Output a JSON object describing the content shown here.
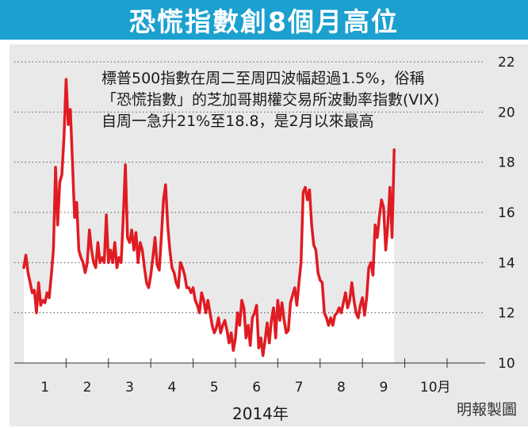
{
  "title": "恐慌指數創8個月高位",
  "annotation": "標普500指數在周二至周四波幅超過1.5%，俗稱「恐慌指數」的芝加哥期權交易所波動率指數(VIX)自周一急升21%至18.8，是2月以來最高",
  "credit": "明報製圖",
  "colors": {
    "title_bg": "#1ba0cf",
    "line": "#e01b22",
    "panel_bg": "#e9e9ea",
    "area_fill": "#ffffff"
  },
  "chart_data": {
    "type": "area",
    "xlabel": "2014年",
    "ylabel": "",
    "ylim": [
      10,
      22
    ],
    "xlim": [
      0,
      10.75
    ],
    "y_ticks": [
      "10",
      "12",
      "14",
      "16",
      "18",
      "20",
      "22"
    ],
    "x_ticks": [
      {
        "label": "1",
        "x": 0.5
      },
      {
        "label": "2",
        "x": 1.5
      },
      {
        "label": "3",
        "x": 2.5
      },
      {
        "label": "4",
        "x": 3.5
      },
      {
        "label": "5",
        "x": 4.5
      },
      {
        "label": "6",
        "x": 5.5
      },
      {
        "label": "7",
        "x": 6.5
      },
      {
        "label": "8",
        "x": 7.5
      },
      {
        "label": "9",
        "x": 8.5
      },
      {
        "label": "10月",
        "x": 9.5
      }
    ],
    "grid": true,
    "series": [
      {
        "values": [
          [
            0.0,
            13.8
          ],
          [
            0.05,
            14.3
          ],
          [
            0.1,
            13.6
          ],
          [
            0.15,
            13.2
          ],
          [
            0.2,
            12.8
          ],
          [
            0.25,
            12.9
          ],
          [
            0.3,
            12.0
          ],
          [
            0.35,
            13.2
          ],
          [
            0.4,
            12.3
          ],
          [
            0.45,
            12.5
          ],
          [
            0.5,
            12.4
          ],
          [
            0.55,
            12.8
          ],
          [
            0.6,
            12.6
          ],
          [
            0.65,
            13.5
          ],
          [
            0.7,
            14.5
          ],
          [
            0.75,
            17.8
          ],
          [
            0.8,
            15.5
          ],
          [
            0.85,
            17.2
          ],
          [
            0.9,
            17.5
          ],
          [
            0.95,
            19.0
          ],
          [
            1.0,
            21.3
          ],
          [
            1.05,
            19.5
          ],
          [
            1.1,
            20.1
          ],
          [
            1.15,
            18.0
          ],
          [
            1.2,
            15.8
          ],
          [
            1.25,
            16.4
          ],
          [
            1.3,
            14.5
          ],
          [
            1.35,
            14.2
          ],
          [
            1.4,
            14.0
          ],
          [
            1.45,
            13.6
          ],
          [
            1.5,
            14.0
          ],
          [
            1.55,
            15.3
          ],
          [
            1.6,
            14.5
          ],
          [
            1.65,
            14.0
          ],
          [
            1.7,
            13.8
          ],
          [
            1.75,
            14.8
          ],
          [
            1.8,
            14.0
          ],
          [
            1.85,
            14.2
          ],
          [
            1.9,
            14.0
          ],
          [
            1.95,
            15.9
          ],
          [
            2.0,
            14.0
          ],
          [
            2.05,
            14.5
          ],
          [
            2.1,
            14.0
          ],
          [
            2.15,
            14.8
          ],
          [
            2.2,
            13.8
          ],
          [
            2.25,
            14.2
          ],
          [
            2.3,
            14.0
          ],
          [
            2.35,
            15.8
          ],
          [
            2.4,
            17.9
          ],
          [
            2.45,
            15.0
          ],
          [
            2.5,
            14.8
          ],
          [
            2.55,
            15.3
          ],
          [
            2.6,
            14.5
          ],
          [
            2.65,
            15.2
          ],
          [
            2.7,
            14.0
          ],
          [
            2.75,
            14.8
          ],
          [
            2.8,
            14.5
          ],
          [
            2.85,
            13.8
          ],
          [
            2.9,
            13.2
          ],
          [
            2.95,
            13.0
          ],
          [
            3.0,
            13.5
          ],
          [
            3.05,
            14.2
          ],
          [
            3.1,
            15.0
          ],
          [
            3.15,
            13.9
          ],
          [
            3.2,
            13.7
          ],
          [
            3.25,
            15.0
          ],
          [
            3.3,
            16.5
          ],
          [
            3.35,
            17.1
          ],
          [
            3.4,
            15.5
          ],
          [
            3.45,
            14.5
          ],
          [
            3.5,
            13.8
          ],
          [
            3.55,
            13.6
          ],
          [
            3.6,
            13.2
          ],
          [
            3.65,
            13.0
          ],
          [
            3.7,
            14.0
          ],
          [
            3.75,
            13.8
          ],
          [
            3.8,
            13.5
          ],
          [
            3.85,
            13.0
          ],
          [
            3.9,
            13.0
          ],
          [
            3.95,
            12.8
          ],
          [
            4.0,
            13.0
          ],
          [
            4.05,
            12.5
          ],
          [
            4.1,
            12.3
          ],
          [
            4.15,
            12.0
          ],
          [
            4.2,
            12.8
          ],
          [
            4.25,
            12.5
          ],
          [
            4.3,
            12.0
          ],
          [
            4.35,
            12.5
          ],
          [
            4.4,
            12.0
          ],
          [
            4.45,
            11.5
          ],
          [
            4.5,
            11.2
          ],
          [
            4.55,
            11.4
          ],
          [
            4.6,
            11.8
          ],
          [
            4.65,
            11.2
          ],
          [
            4.7,
            11.5
          ],
          [
            4.75,
            11.7
          ],
          [
            4.8,
            11.3
          ],
          [
            4.85,
            10.8
          ],
          [
            4.9,
            11.2
          ],
          [
            4.95,
            10.5
          ],
          [
            5.0,
            11.0
          ],
          [
            5.05,
            12.0
          ],
          [
            5.1,
            11.5
          ],
          [
            5.15,
            12.5
          ],
          [
            5.2,
            12.2
          ],
          [
            5.25,
            11.0
          ],
          [
            5.3,
            11.5
          ],
          [
            5.35,
            10.7
          ],
          [
            5.4,
            11.8
          ],
          [
            5.45,
            12.0
          ],
          [
            5.5,
            12.3
          ],
          [
            5.55,
            10.6
          ],
          [
            5.6,
            11.0
          ],
          [
            5.65,
            10.3
          ],
          [
            5.7,
            10.9
          ],
          [
            5.75,
            11.6
          ],
          [
            5.8,
            10.8
          ],
          [
            5.85,
            11.7
          ],
          [
            5.9,
            12.2
          ],
          [
            5.95,
            11.0
          ],
          [
            6.0,
            12.5
          ],
          [
            6.05,
            11.7
          ],
          [
            6.1,
            12.4
          ],
          [
            6.15,
            11.7
          ],
          [
            6.2,
            11.2
          ],
          [
            6.25,
            11.3
          ],
          [
            6.3,
            12.4
          ],
          [
            6.35,
            12.7
          ],
          [
            6.4,
            13.0
          ],
          [
            6.45,
            12.3
          ],
          [
            6.5,
            13.2
          ],
          [
            6.55,
            14.0
          ],
          [
            6.6,
            16.8
          ],
          [
            6.65,
            17.0
          ],
          [
            6.7,
            16.5
          ],
          [
            6.75,
            16.9
          ],
          [
            6.8,
            15.5
          ],
          [
            6.85,
            14.7
          ],
          [
            6.9,
            14.5
          ],
          [
            6.95,
            13.6
          ],
          [
            7.0,
            13.3
          ],
          [
            7.05,
            13.2
          ],
          [
            7.1,
            12.0
          ],
          [
            7.15,
            11.8
          ],
          [
            7.2,
            11.5
          ],
          [
            7.25,
            11.8
          ],
          [
            7.3,
            11.5
          ],
          [
            7.35,
            11.9
          ],
          [
            7.4,
            12.0
          ],
          [
            7.45,
            12.2
          ],
          [
            7.5,
            12.0
          ],
          [
            7.55,
            12.4
          ],
          [
            7.6,
            12.8
          ],
          [
            7.65,
            12.2
          ],
          [
            7.7,
            12.5
          ],
          [
            7.75,
            13.2
          ],
          [
            7.8,
            12.5
          ],
          [
            7.85,
            12.0
          ],
          [
            7.9,
            11.8
          ],
          [
            7.95,
            12.3
          ],
          [
            8.0,
            12.6
          ],
          [
            8.05,
            11.9
          ],
          [
            8.1,
            12.6
          ],
          [
            8.15,
            13.8
          ],
          [
            8.2,
            14.0
          ],
          [
            8.25,
            13.5
          ],
          [
            8.3,
            15.5
          ],
          [
            8.35,
            15.0
          ],
          [
            8.4,
            15.8
          ],
          [
            8.45,
            16.5
          ],
          [
            8.5,
            16.2
          ],
          [
            8.55,
            14.5
          ],
          [
            8.6,
            15.5
          ],
          [
            8.65,
            17.0
          ],
          [
            8.7,
            15.0
          ],
          [
            8.75,
            18.5
          ]
        ]
      }
    ]
  }
}
